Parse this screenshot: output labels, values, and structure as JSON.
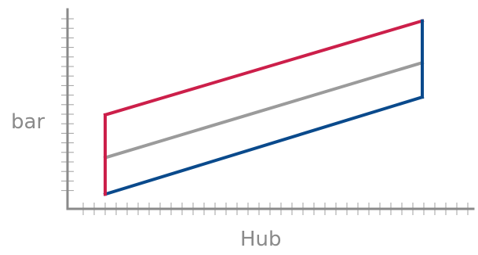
{
  "chart_data": {
    "type": "line",
    "title": "",
    "xlabel": "Hub",
    "ylabel": "bar",
    "xlim": [
      0,
      1
    ],
    "ylim": [
      0,
      1
    ],
    "grid": false,
    "legend": "none",
    "x": [
      0,
      1
    ],
    "series": [
      {
        "values": [
          0.45,
          0.9
        ],
        "color": "#cc1f4a"
      },
      {
        "values": [
          0.245,
          0.7
        ],
        "color": "#9b9b9b"
      },
      {
        "values": [
          0.07,
          0.535
        ],
        "color": "#0a4a8c"
      }
    ],
    "envelope": {
      "color_left": "#cc1f4a",
      "color_right": "#0a4a8c",
      "left_x": 0,
      "right_x": 1
    },
    "colors": {
      "axis": "#8a8a8a",
      "tick": "#a0a0a0",
      "label": "#8a8a8a"
    }
  }
}
